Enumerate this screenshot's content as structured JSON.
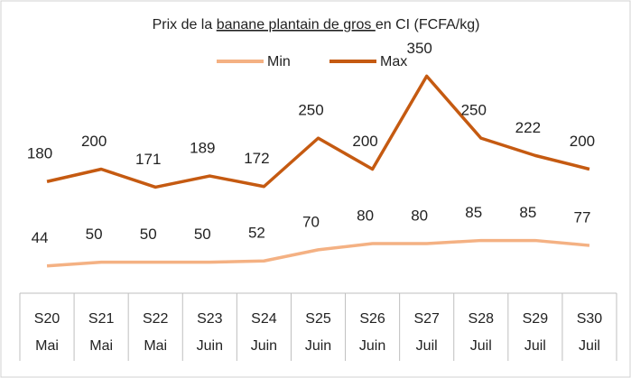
{
  "chart_data": {
    "type": "line",
    "title_parts": [
      "Prix de la ",
      "banane plantain de gros ",
      "en CI (FCFA/kg)"
    ],
    "categories": [
      "S20",
      "S21",
      "S22",
      "S23",
      "S24",
      "S25",
      "S26",
      "S27",
      "S28",
      "S29",
      "S30"
    ],
    "category_groups": [
      "Mai",
      "Mai",
      "Mai",
      "Juin",
      "Juin",
      "Juin",
      "Juin",
      "Juil",
      "Juil",
      "Juil",
      "Juil"
    ],
    "series": [
      {
        "name": "Min",
        "color": "#f4b183",
        "values": [
          44,
          50,
          50,
          50,
          52,
          70,
          80,
          80,
          85,
          85,
          77
        ]
      },
      {
        "name": "Max",
        "color": "#c55a11",
        "values": [
          180,
          200,
          171,
          189,
          172,
          250,
          200,
          350,
          250,
          222,
          200
        ]
      }
    ],
    "ylim": [
      0,
      400
    ],
    "grid": false,
    "legend": "top"
  }
}
